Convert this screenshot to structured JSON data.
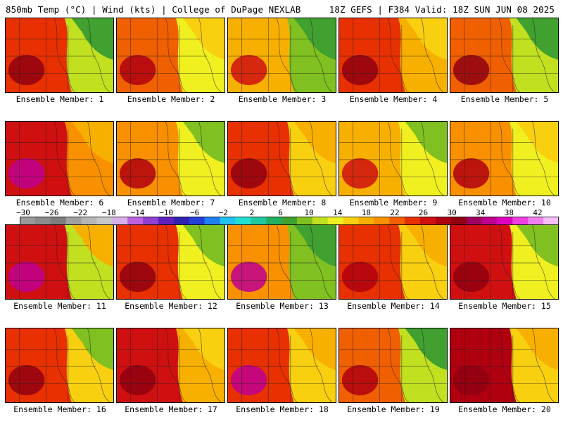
{
  "header": {
    "left": "850mb Temp (°C) | Wind (kts) | College of DuPage NEXLAB",
    "right": "18Z GEFS | F384 Valid: 18Z SUN JUN 08 2025"
  },
  "colorbar": {
    "labels": [
      "−30",
      "−26",
      "−22",
      "−18",
      "−14",
      "−10",
      "−6",
      "−2",
      "2",
      "6",
      "10",
      "14",
      "18",
      "22",
      "26",
      "30",
      "34",
      "38",
      "42"
    ],
    "colors": [
      "#9a9a9a",
      "#8c8c8c",
      "#7e7e7e",
      "#a0a0a0",
      "#b6b6b6",
      "#c8c8c8",
      "#d8b0e8",
      "#c060e0",
      "#9040d0",
      "#6020c0",
      "#3020b0",
      "#2040d8",
      "#2080f0",
      "#20c0f0",
      "#20e0d0",
      "#20c8a0",
      "#20b060",
      "#40a030",
      "#80c020",
      "#c0e020",
      "#f0f020",
      "#f8d010",
      "#f8b000",
      "#f89000",
      "#f06000",
      "#e83000",
      "#d01010",
      "#b00010",
      "#900010",
      "#a00060",
      "#c00090",
      "#e000c0",
      "#f040e0",
      "#f080f0",
      "#f8c0f8"
    ]
  },
  "panels": [
    {
      "label": "Ensemble Member: 1"
    },
    {
      "label": "Ensemble Member: 2"
    },
    {
      "label": "Ensemble Member: 3"
    },
    {
      "label": "Ensemble Member: 4"
    },
    {
      "label": "Ensemble Member: 5"
    },
    {
      "label": "Ensemble Member: 6"
    },
    {
      "label": "Ensemble Member: 7"
    },
    {
      "label": "Ensemble Member: 8"
    },
    {
      "label": "Ensemble Member: 9"
    },
    {
      "label": "Ensemble Member: 10"
    },
    {
      "label": "Ensemble Member: 11"
    },
    {
      "label": "Ensemble Member: 12"
    },
    {
      "label": "Ensemble Member: 13"
    },
    {
      "label": "Ensemble Member: 14"
    },
    {
      "label": "Ensemble Member: 15"
    },
    {
      "label": "Ensemble Member: 16"
    },
    {
      "label": "Ensemble Member: 17"
    },
    {
      "label": "Ensemble Member: 18"
    },
    {
      "label": "Ensemble Member: 19"
    },
    {
      "label": "Ensemble Member: 20"
    }
  ]
}
